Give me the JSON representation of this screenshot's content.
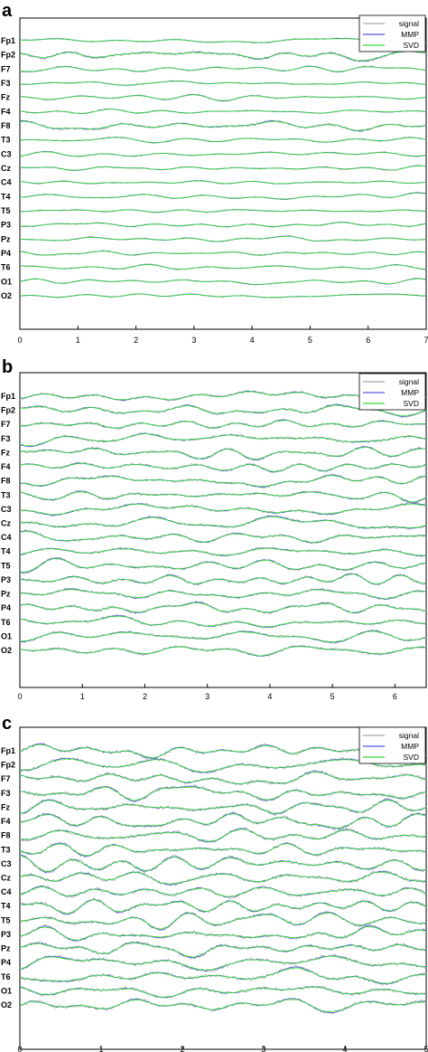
{
  "chart_data": [
    {
      "type": "line",
      "panel": "a",
      "channels": [
        "Fp1",
        "Fp2",
        "F7",
        "F3",
        "Fz",
        "F4",
        "F8",
        "T3",
        "C3",
        "Cz",
        "C4",
        "T4",
        "T5",
        "P3",
        "Pz",
        "P4",
        "T6",
        "O1",
        "O2"
      ],
      "xlim": [
        0,
        7
      ],
      "xticks": [
        "0",
        "1",
        "2",
        "3",
        "4",
        "5",
        "6",
        "7"
      ],
      "legend": {
        "placement": "top-right",
        "entries": [
          "signal",
          "MMP",
          "SVD"
        ]
      },
      "series": [
        {
          "name": "signal",
          "color": "#a8a8a8"
        },
        {
          "name": "MMP",
          "color": "#5555dd"
        },
        {
          "name": "SVD",
          "color": "#33dd33"
        }
      ]
    },
    {
      "type": "line",
      "panel": "b",
      "channels": [
        "Fp1",
        "Fp2",
        "F7",
        "F3",
        "Fz",
        "F4",
        "F8",
        "T3",
        "C3",
        "Cz",
        "C4",
        "T4",
        "T5",
        "P3",
        "Pz",
        "P4",
        "T6",
        "O1",
        "O2"
      ],
      "xlim": [
        0,
        6.5
      ],
      "xticks": [
        "0",
        "1",
        "2",
        "3",
        "4",
        "5",
        "6"
      ],
      "legend": {
        "placement": "top-right",
        "entries": [
          "signal",
          "MMP",
          "SVD"
        ]
      },
      "series": [
        {
          "name": "signal",
          "color": "#a8a8a8"
        },
        {
          "name": "MMP",
          "color": "#5555dd"
        },
        {
          "name": "SVD",
          "color": "#33dd33"
        }
      ]
    },
    {
      "type": "line",
      "panel": "c",
      "channels": [
        "Fp1",
        "Fp2",
        "F7",
        "F3",
        "Fz",
        "F4",
        "F8",
        "T3",
        "C3",
        "Cz",
        "C4",
        "T4",
        "T5",
        "P3",
        "Pz",
        "P4",
        "T6",
        "O1",
        "O2"
      ],
      "xlim": [
        0,
        5
      ],
      "xticks": [
        "0",
        "1",
        "2",
        "3",
        "4",
        "5"
      ],
      "legend": {
        "placement": "top-right",
        "entries": [
          "signal",
          "MMP",
          "SVD"
        ]
      },
      "series": [
        {
          "name": "signal",
          "color": "#a8a8a8"
        },
        {
          "name": "MMP",
          "color": "#5555dd"
        },
        {
          "name": "SVD",
          "color": "#33dd33"
        }
      ]
    }
  ]
}
